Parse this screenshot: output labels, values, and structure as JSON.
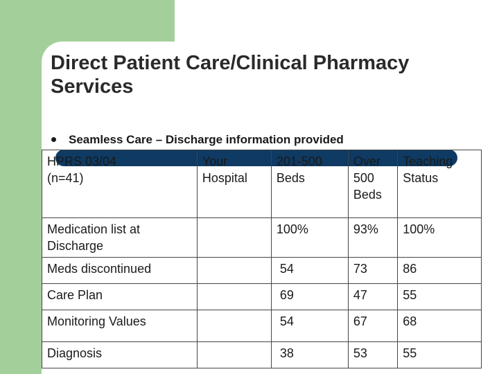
{
  "title": {
    "line1": "Direct Patient Care/Clinical Pharmacy",
    "line2": "Services"
  },
  "bullet": "Seamless Care – Discharge information provided",
  "table": {
    "header": {
      "label_line1": "HPRS 03/04",
      "label_line2": "(n=41)",
      "col1_line1": "Your",
      "col1_line2": "Hospital",
      "col2_line1": "201-500",
      "col2_line2": "Beds",
      "col3_line1": "Over",
      "col3_line2": "500",
      "col3_line3": "Beds",
      "col4_line1": "Teaching",
      "col4_line2": "Status"
    },
    "rows": [
      {
        "label_line1": "Medication list at",
        "label_line2": "Discharge",
        "hospital": "",
        "beds_201_500": "100%",
        "over_500": "93%",
        "teaching": "100%"
      },
      {
        "label": "Meds discontinued",
        "hospital": "",
        "beds_201_500": "54",
        "over_500": "73",
        "teaching": "86"
      },
      {
        "label": "Care Plan",
        "hospital": "",
        "beds_201_500": "69",
        "over_500": "47",
        "teaching": "55"
      },
      {
        "label": "Monitoring Values",
        "hospital": "",
        "beds_201_500": "54",
        "over_500": "67",
        "teaching": "68"
      },
      {
        "label": "Diagnosis",
        "hospital": "",
        "beds_201_500": "38",
        "over_500": "53",
        "teaching": "55"
      }
    ]
  },
  "colors": {
    "green": "#a3d09a",
    "navy_bar": "#0e3a63"
  }
}
